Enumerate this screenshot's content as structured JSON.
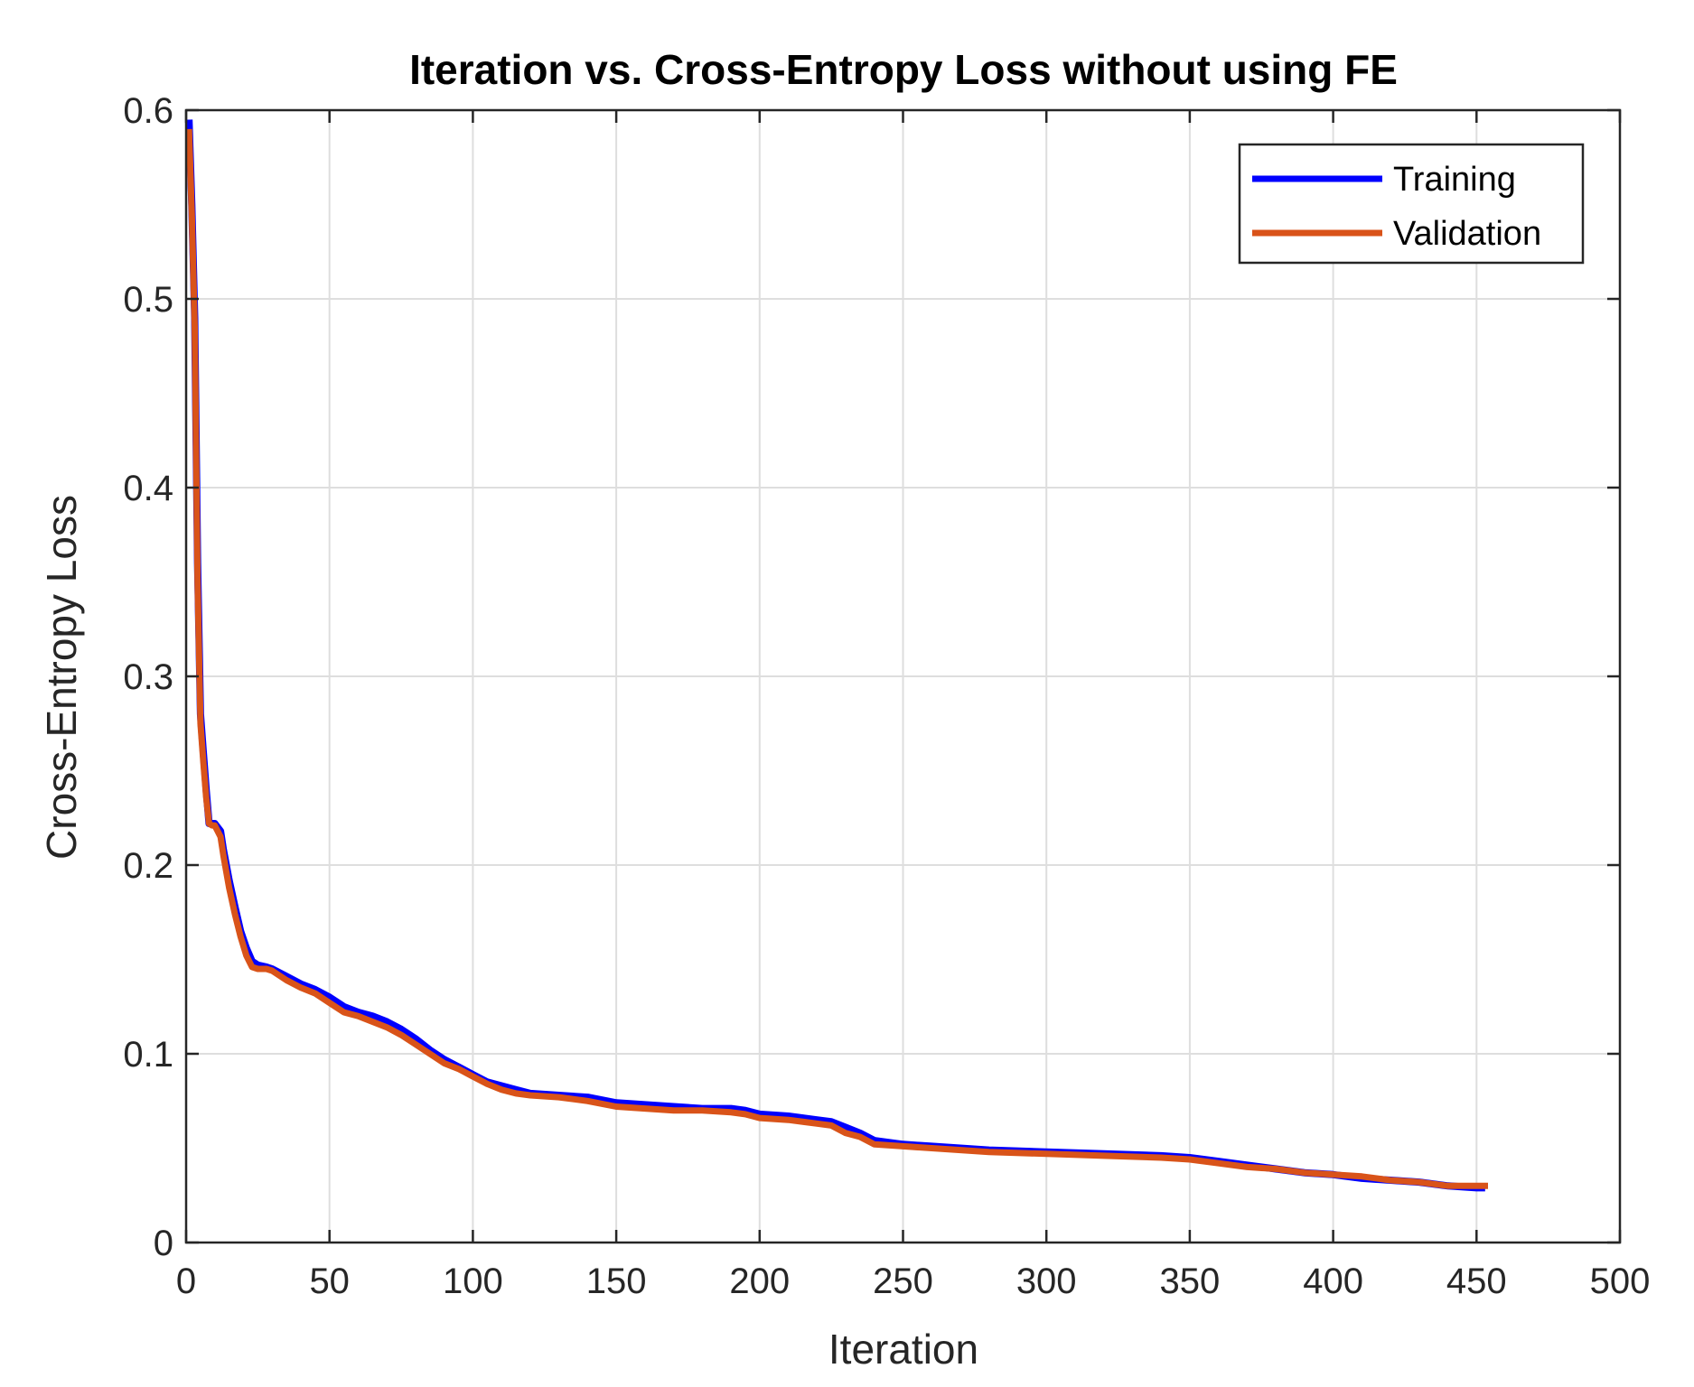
{
  "chart_data": {
    "type": "line",
    "title": "Iteration vs. Cross-Entropy Loss without using FE",
    "xlabel": "Iteration",
    "ylabel": "Cross-Entropy Loss",
    "xlim": [
      0,
      500
    ],
    "ylim": [
      0,
      0.6
    ],
    "xticks": [
      0,
      50,
      100,
      150,
      200,
      250,
      300,
      350,
      400,
      450,
      500
    ],
    "xtick_labels": [
      "0",
      "50",
      "100",
      "150",
      "200",
      "250",
      "300",
      "350",
      "400",
      "450",
      "500"
    ],
    "yticks": [
      0,
      0.1,
      0.2,
      0.3,
      0.4,
      0.5,
      0.6
    ],
    "ytick_labels": [
      "0",
      "0.1",
      "0.2",
      "0.3",
      "0.4",
      "0.5",
      "0.6"
    ],
    "grid": true,
    "legend_position": "top-right",
    "series": [
      {
        "name": "Training",
        "color": "#0000ff",
        "x": [
          1,
          2,
          3,
          4,
          5,
          6,
          7,
          8,
          9,
          10,
          12,
          13,
          15,
          17,
          19,
          21,
          23,
          25,
          28,
          30,
          35,
          40,
          45,
          50,
          55,
          60,
          65,
          70,
          75,
          80,
          85,
          90,
          95,
          100,
          105,
          110,
          115,
          120,
          130,
          140,
          150,
          160,
          170,
          180,
          190,
          195,
          200,
          210,
          220,
          225,
          230,
          235,
          240,
          250,
          260,
          280,
          300,
          320,
          340,
          350,
          360,
          370,
          380,
          390,
          400,
          410,
          420,
          430,
          440,
          450,
          453
        ],
        "y": [
          0.595,
          0.55,
          0.49,
          0.36,
          0.28,
          0.26,
          0.24,
          0.222,
          0.222,
          0.222,
          0.218,
          0.208,
          0.192,
          0.178,
          0.165,
          0.156,
          0.149,
          0.147,
          0.146,
          0.145,
          0.141,
          0.137,
          0.134,
          0.13,
          0.125,
          0.122,
          0.12,
          0.117,
          0.113,
          0.108,
          0.102,
          0.097,
          0.093,
          0.089,
          0.085,
          0.083,
          0.081,
          0.079,
          0.078,
          0.077,
          0.074,
          0.073,
          0.072,
          0.071,
          0.071,
          0.07,
          0.068,
          0.067,
          0.065,
          0.064,
          0.061,
          0.058,
          0.054,
          0.052,
          0.051,
          0.049,
          0.048,
          0.047,
          0.046,
          0.045,
          0.043,
          0.041,
          0.039,
          0.037,
          0.036,
          0.034,
          0.033,
          0.032,
          0.03,
          0.029,
          0.029
        ]
      },
      {
        "name": "Validation",
        "color": "#d95319",
        "x": [
          1,
          2,
          3,
          4,
          5,
          6,
          7,
          8,
          9,
          10,
          12,
          13,
          15,
          17,
          19,
          21,
          23,
          25,
          28,
          30,
          35,
          40,
          45,
          50,
          55,
          60,
          65,
          70,
          75,
          80,
          85,
          90,
          95,
          100,
          105,
          110,
          115,
          120,
          130,
          140,
          150,
          160,
          170,
          180,
          190,
          195,
          200,
          210,
          220,
          225,
          230,
          235,
          240,
          250,
          260,
          280,
          300,
          320,
          340,
          350,
          360,
          370,
          380,
          390,
          400,
          410,
          420,
          430,
          440,
          450,
          454
        ],
        "y": [
          0.59,
          0.545,
          0.485,
          0.35,
          0.275,
          0.255,
          0.236,
          0.222,
          0.221,
          0.221,
          0.215,
          0.205,
          0.188,
          0.174,
          0.162,
          0.152,
          0.146,
          0.145,
          0.145,
          0.144,
          0.139,
          0.135,
          0.132,
          0.127,
          0.122,
          0.12,
          0.117,
          0.114,
          0.11,
          0.105,
          0.1,
          0.095,
          0.092,
          0.088,
          0.084,
          0.081,
          0.079,
          0.078,
          0.077,
          0.075,
          0.072,
          0.071,
          0.07,
          0.07,
          0.069,
          0.068,
          0.066,
          0.065,
          0.063,
          0.062,
          0.058,
          0.056,
          0.052,
          0.051,
          0.05,
          0.048,
          0.047,
          0.046,
          0.045,
          0.044,
          0.042,
          0.04,
          0.039,
          0.037,
          0.036,
          0.035,
          0.033,
          0.032,
          0.03,
          0.03,
          0.03
        ]
      }
    ]
  }
}
